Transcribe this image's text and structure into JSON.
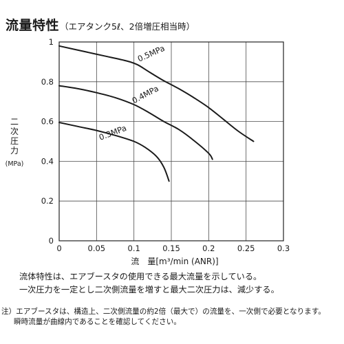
{
  "title": {
    "main": "流量特性",
    "sub": "（エアタンク5ℓ、2倍増圧相当時）"
  },
  "chart_data": {
    "type": "line",
    "title": "流量特性（エアタンク5ℓ、2倍増圧相当時）",
    "xlabel": "流　量[m³/min (ANR)]",
    "ylabel_chars": [
      "二",
      "次",
      "圧",
      "力"
    ],
    "ylabel_unit": "(MPa)",
    "xlim": [
      0,
      0.3
    ],
    "ylim": [
      0,
      1
    ],
    "x_ticks": [
      "0",
      "0.05",
      "0.1",
      "0.15",
      "0.2",
      "0.25",
      "0.3"
    ],
    "y_ticks": [
      "0",
      "0.2",
      "0.4",
      "0.6",
      "0.8",
      "1"
    ],
    "grid": true,
    "series": [
      {
        "name": "0.5MPa",
        "points": [
          [
            0,
            0.98
          ],
          [
            0.03,
            0.955
          ],
          [
            0.06,
            0.93
          ],
          [
            0.09,
            0.905
          ],
          [
            0.105,
            0.885
          ],
          [
            0.12,
            0.85
          ],
          [
            0.14,
            0.805
          ],
          [
            0.16,
            0.765
          ],
          [
            0.18,
            0.72
          ],
          [
            0.2,
            0.67
          ],
          [
            0.22,
            0.61
          ],
          [
            0.24,
            0.55
          ],
          [
            0.26,
            0.5
          ]
        ]
      },
      {
        "name": "0.4MPa",
        "points": [
          [
            0,
            0.78
          ],
          [
            0.025,
            0.765
          ],
          [
            0.05,
            0.745
          ],
          [
            0.075,
            0.72
          ],
          [
            0.1,
            0.685
          ],
          [
            0.12,
            0.645
          ],
          [
            0.14,
            0.6
          ],
          [
            0.16,
            0.56
          ],
          [
            0.18,
            0.505
          ],
          [
            0.2,
            0.44
          ],
          [
            0.205,
            0.41
          ]
        ]
      },
      {
        "name": "0.3MPa",
        "points": [
          [
            0,
            0.595
          ],
          [
            0.025,
            0.575
          ],
          [
            0.05,
            0.555
          ],
          [
            0.075,
            0.53
          ],
          [
            0.1,
            0.5
          ],
          [
            0.115,
            0.47
          ],
          [
            0.13,
            0.425
          ],
          [
            0.14,
            0.37
          ],
          [
            0.147,
            0.3
          ]
        ]
      }
    ],
    "annotations": [
      {
        "series": "0.5MPa",
        "text": "0.5MPa",
        "x": 0.107,
        "y": 0.9,
        "angle": -24
      },
      {
        "series": "0.4MPa",
        "text": "0.4MPa",
        "x": 0.1,
        "y": 0.69,
        "angle": -28
      },
      {
        "series": "0.3MPa",
        "text": "0.3MPa",
        "x": 0.055,
        "y": 0.505,
        "angle": -21
      }
    ],
    "line_color": "#1a1a1a"
  },
  "notes": [
    "流体特性は、エアブースタの使用できる最大流量を示している。",
    "一次圧力を一定とし二次側流量を増すと最大二次圧力は、減少する。"
  ],
  "footnote": [
    "注）エアブースタは、構造上、二次側流量の約2倍（最大で）の流量を、一次側で必要となります。",
    "瞬時流量が曲線内であることを確認してください。"
  ]
}
